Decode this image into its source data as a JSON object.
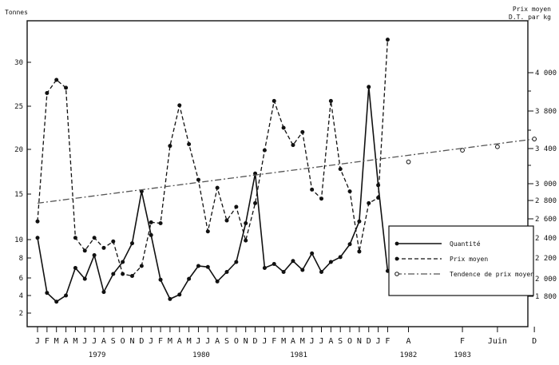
{
  "chart_data": {
    "type": "line",
    "left_axis": {
      "label": "Tonnes",
      "ticks": [
        2,
        4,
        6,
        8,
        10,
        15,
        20,
        25,
        30
      ],
      "range": [
        0,
        34
      ]
    },
    "right_axis": {
      "label_line1": "Prix moyen",
      "label_line2": "D.T. par kg",
      "ticks": [
        "1 800",
        "2 000",
        "2 200",
        "2 400",
        "2 600",
        "2 800",
        "3 000",
        "3 400",
        "3 800",
        "4 000"
      ]
    },
    "x_months": [
      "J",
      "F",
      "M",
      "A",
      "M",
      "J",
      "J",
      "A",
      "S",
      "O",
      "N",
      "D",
      "J",
      "F",
      "M",
      "A",
      "M",
      "J",
      "J",
      "A",
      "S",
      "O",
      "N",
      "D",
      "J",
      "F",
      "M",
      "A",
      "M",
      "J",
      "J",
      "A",
      "S",
      "O",
      "N",
      "D",
      "J",
      "F"
    ],
    "x_extra_ticks": [
      {
        "label": "A",
        "index": 39.2
      },
      {
        "label": "F",
        "index": 44.9
      },
      {
        "label": "Juin",
        "index": 48.6
      },
      {
        "label": "D",
        "index": 52.5
      }
    ],
    "years": [
      {
        "label": "1979",
        "index": 6.3
      },
      {
        "label": "1980",
        "index": 17.3
      },
      {
        "label": "1981",
        "index": 27.6
      },
      {
        "label": "1982",
        "index": 39.2
      },
      {
        "label": "1983",
        "index": 44.9
      }
    ],
    "series": [
      {
        "name": "Quantité",
        "style": "solid",
        "values": [
          10.2,
          4.3,
          3.3,
          4.0,
          7.0,
          5.9,
          8.3,
          4.4,
          6.4,
          7.6,
          9.6,
          15.3,
          10.5,
          5.8,
          3.6,
          4.1,
          5.9,
          7.2,
          7.1,
          5.6,
          6.6,
          7.6,
          11.8,
          17.3,
          7.0,
          7.4,
          6.6,
          7.7,
          6.8,
          8.5,
          6.6,
          7.6,
          8.1,
          9.5,
          12.0,
          27.2,
          16.0,
          6.7
        ]
      },
      {
        "name": "Prix moyen",
        "style": "dashed",
        "values": [
          12.0,
          26.5,
          28.0,
          27.1,
          10.2,
          8.8,
          10.2,
          9.1,
          9.8,
          6.4,
          6.2,
          7.2,
          11.9,
          11.8,
          20.4,
          25.1,
          20.6,
          16.6,
          10.9,
          15.7,
          12.1,
          13.6,
          9.9,
          14.0,
          19.9,
          25.6,
          22.5,
          20.5,
          22.0,
          15.5,
          14.5,
          25.6,
          17.8,
          15.3,
          8.7,
          14.0,
          14.6,
          32.5
        ]
      },
      {
        "name": "Tendence de prix moyen",
        "style": "dashdot",
        "line": [
          [
            0,
            14.0
          ],
          [
            52.5,
            21.2
          ]
        ],
        "markers": [
          [
            39.2,
            18.6
          ],
          [
            44.9,
            19.9
          ],
          [
            48.6,
            20.3
          ],
          [
            52.5,
            21.2
          ]
        ]
      }
    ],
    "legend_placement": "bottom-right"
  }
}
